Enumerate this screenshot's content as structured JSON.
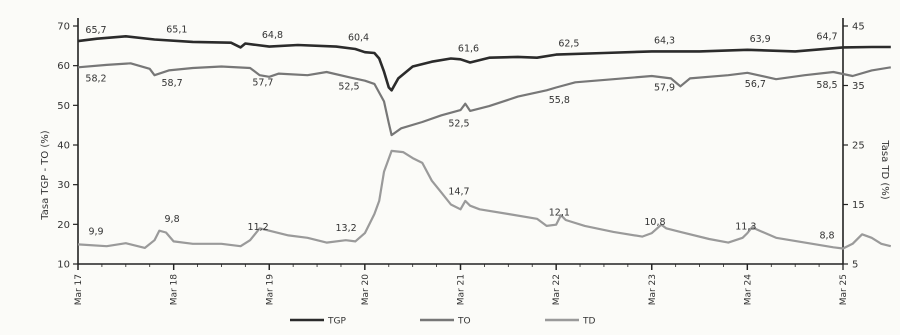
{
  "chart_data": {
    "type": "line",
    "ylabel_left": "Tasa TGP - TO (%)",
    "ylabel_right": "Tasa TD (%)",
    "ylim_left": [
      10,
      70
    ],
    "ylim_right": [
      5,
      45
    ],
    "yticks_left": [
      "10",
      "20",
      "30",
      "40",
      "50",
      "60",
      "70"
    ],
    "yticks_right": [
      "5",
      "15",
      "25",
      "35",
      "45"
    ],
    "x_ticks": [
      "Mar 17",
      "Mar 18",
      "Mar 19",
      "Mar 20",
      "Mar 21",
      "Mar 22",
      "Mar 23",
      "Mar 24",
      "Mar 25"
    ],
    "series": [
      {
        "name": "TGP",
        "axis": "left",
        "color": "#2b2b2b",
        "width": 2.6,
        "points": [
          [
            0,
            66.2
          ],
          [
            0.2,
            66.8
          ],
          [
            0.5,
            67.4
          ],
          [
            0.8,
            66.6
          ],
          [
            1.2,
            66.0
          ],
          [
            1.6,
            65.8
          ],
          [
            1.7,
            64.6
          ],
          [
            1.75,
            65.6
          ],
          [
            2.0,
            64.8
          ],
          [
            2.3,
            65.2
          ],
          [
            2.7,
            64.8
          ],
          [
            2.9,
            64.2
          ],
          [
            3.0,
            63.4
          ],
          [
            3.1,
            63.2
          ],
          [
            3.15,
            61.8
          ],
          [
            3.2,
            58.5
          ],
          [
            3.25,
            54.5
          ],
          [
            3.28,
            53.8
          ],
          [
            3.35,
            56.8
          ],
          [
            3.5,
            59.8
          ],
          [
            3.7,
            61.0
          ],
          [
            3.9,
            61.8
          ],
          [
            4.0,
            61.6
          ],
          [
            4.1,
            60.8
          ],
          [
            4.3,
            62.0
          ],
          [
            4.6,
            62.2
          ],
          [
            4.8,
            62.0
          ],
          [
            5.0,
            62.8
          ],
          [
            5.5,
            63.2
          ],
          [
            6.0,
            63.6
          ],
          [
            6.5,
            63.6
          ],
          [
            7.0,
            64.0
          ],
          [
            7.5,
            63.6
          ],
          [
            8.0,
            64.6
          ],
          [
            8.3,
            64.7
          ],
          [
            8.5,
            64.7
          ]
        ]
      },
      {
        "name": "TO",
        "axis": "left",
        "color": "#777777",
        "width": 2.2,
        "points": [
          [
            0,
            59.6
          ],
          [
            0.3,
            60.2
          ],
          [
            0.55,
            60.6
          ],
          [
            0.75,
            59.2
          ],
          [
            0.8,
            57.6
          ],
          [
            0.95,
            58.8
          ],
          [
            1.2,
            59.4
          ],
          [
            1.5,
            59.8
          ],
          [
            1.8,
            59.4
          ],
          [
            1.9,
            57.6
          ],
          [
            2.0,
            57.2
          ],
          [
            2.1,
            58.0
          ],
          [
            2.4,
            57.6
          ],
          [
            2.6,
            58.4
          ],
          [
            2.85,
            57.0
          ],
          [
            3.0,
            56.2
          ],
          [
            3.1,
            55.4
          ],
          [
            3.2,
            51.0
          ],
          [
            3.25,
            45.5
          ],
          [
            3.28,
            42.5
          ],
          [
            3.38,
            44.2
          ],
          [
            3.6,
            45.8
          ],
          [
            3.8,
            47.5
          ],
          [
            4.0,
            48.8
          ],
          [
            4.05,
            50.4
          ],
          [
            4.1,
            48.6
          ],
          [
            4.3,
            49.8
          ],
          [
            4.6,
            52.2
          ],
          [
            4.9,
            53.8
          ],
          [
            5.0,
            54.5
          ],
          [
            5.2,
            55.8
          ],
          [
            5.6,
            56.6
          ],
          [
            6.0,
            57.4
          ],
          [
            6.2,
            56.8
          ],
          [
            6.3,
            54.8
          ],
          [
            6.4,
            56.8
          ],
          [
            6.8,
            57.6
          ],
          [
            7.0,
            58.2
          ],
          [
            7.3,
            56.6
          ],
          [
            7.6,
            57.6
          ],
          [
            7.9,
            58.4
          ],
          [
            8.1,
            57.4
          ],
          [
            8.3,
            58.8
          ],
          [
            8.5,
            59.6
          ]
        ]
      },
      {
        "name": "TD",
        "axis": "right",
        "color": "#9a9a9a",
        "width": 2.2,
        "points": [
          [
            0,
            8.3
          ],
          [
            0.3,
            8.0
          ],
          [
            0.5,
            8.5
          ],
          [
            0.7,
            7.7
          ],
          [
            0.8,
            9.0
          ],
          [
            0.85,
            10.6
          ],
          [
            0.92,
            10.3
          ],
          [
            1.0,
            8.8
          ],
          [
            1.2,
            8.4
          ],
          [
            1.5,
            8.4
          ],
          [
            1.7,
            8.0
          ],
          [
            1.8,
            9.0
          ],
          [
            1.9,
            11.0
          ],
          [
            2.0,
            10.6
          ],
          [
            2.2,
            9.8
          ],
          [
            2.4,
            9.4
          ],
          [
            2.6,
            8.6
          ],
          [
            2.8,
            9.0
          ],
          [
            2.9,
            8.8
          ],
          [
            3.0,
            10.2
          ],
          [
            3.05,
            11.8
          ],
          [
            3.1,
            13.4
          ],
          [
            3.15,
            15.6
          ],
          [
            3.2,
            20.5
          ],
          [
            3.28,
            24.0
          ],
          [
            3.4,
            23.8
          ],
          [
            3.5,
            22.8
          ],
          [
            3.6,
            22.0
          ],
          [
            3.7,
            19.0
          ],
          [
            3.8,
            17.0
          ],
          [
            3.9,
            15.0
          ],
          [
            4.0,
            14.2
          ],
          [
            4.05,
            15.6
          ],
          [
            4.1,
            14.8
          ],
          [
            4.2,
            14.2
          ],
          [
            4.5,
            13.4
          ],
          [
            4.8,
            12.6
          ],
          [
            4.9,
            11.4
          ],
          [
            5.0,
            11.6
          ],
          [
            5.05,
            13.2
          ],
          [
            5.1,
            12.4
          ],
          [
            5.3,
            11.4
          ],
          [
            5.6,
            10.4
          ],
          [
            5.9,
            9.6
          ],
          [
            6.0,
            10.2
          ],
          [
            6.1,
            11.6
          ],
          [
            6.15,
            11.0
          ],
          [
            6.3,
            10.4
          ],
          [
            6.6,
            9.2
          ],
          [
            6.8,
            8.6
          ],
          [
            6.95,
            9.4
          ],
          [
            7.0,
            10.2
          ],
          [
            7.05,
            11.2
          ],
          [
            7.1,
            10.8
          ],
          [
            7.3,
            9.4
          ],
          [
            7.6,
            8.6
          ],
          [
            7.9,
            7.8
          ],
          [
            8.0,
            7.6
          ],
          [
            8.1,
            8.4
          ],
          [
            8.2,
            10.0
          ],
          [
            8.3,
            9.4
          ],
          [
            8.4,
            8.4
          ],
          [
            8.5,
            8.0
          ]
        ]
      }
    ],
    "annotations": [
      {
        "series": "TGP",
        "x": 0.0,
        "text": "65,7"
      },
      {
        "series": "TGP",
        "x": 0.95,
        "text": "65,1"
      },
      {
        "series": "TGP",
        "x": 1.95,
        "text": "64,8"
      },
      {
        "series": "TGP",
        "x": 2.85,
        "text": "60,4"
      },
      {
        "series": "TGP",
        "x": 4.0,
        "text": "61,6"
      },
      {
        "series": "TGP",
        "x": 5.05,
        "text": "62,5"
      },
      {
        "series": "TGP",
        "x": 6.05,
        "text": "64,3"
      },
      {
        "series": "TGP",
        "x": 7.05,
        "text": "63,9"
      },
      {
        "series": "TGP",
        "x": 8.05,
        "text": "64,7"
      },
      {
        "series": "TO",
        "x": 0.0,
        "text": "58,2"
      },
      {
        "series": "TO",
        "x": 0.9,
        "text": "58,7"
      },
      {
        "series": "TO",
        "x": 1.85,
        "text": "57,7"
      },
      {
        "series": "TO",
        "x": 2.75,
        "text": "52,5"
      },
      {
        "series": "TO",
        "x": 3.9,
        "text": "52,5"
      },
      {
        "series": "TO",
        "x": 4.95,
        "text": "55,8"
      },
      {
        "series": "TO",
        "x": 6.05,
        "text": "57,9"
      },
      {
        "series": "TO",
        "x": 7.0,
        "text": "56,7"
      },
      {
        "series": "TO",
        "x": 8.0,
        "text": "58,5"
      },
      {
        "series": "TD",
        "x": 0.0,
        "text": "9,9"
      },
      {
        "series": "TD",
        "x": 0.9,
        "text": "9,8"
      },
      {
        "series": "TD",
        "x": 1.8,
        "text": "11,2"
      },
      {
        "series": "TD",
        "x": 2.72,
        "text": "13,2"
      },
      {
        "series": "TD",
        "x": 3.9,
        "text": "14,7"
      },
      {
        "series": "TD",
        "x": 4.95,
        "text": "12,1"
      },
      {
        "series": "TD",
        "x": 5.95,
        "text": "10,8"
      },
      {
        "series": "TD",
        "x": 6.9,
        "text": "11,3"
      },
      {
        "series": "TD",
        "x": 8.0,
        "text": "8,8"
      }
    ],
    "legend": [
      "TGP",
      "TO",
      "TD"
    ],
    "legend_position": "bottom-center",
    "grid": false
  }
}
